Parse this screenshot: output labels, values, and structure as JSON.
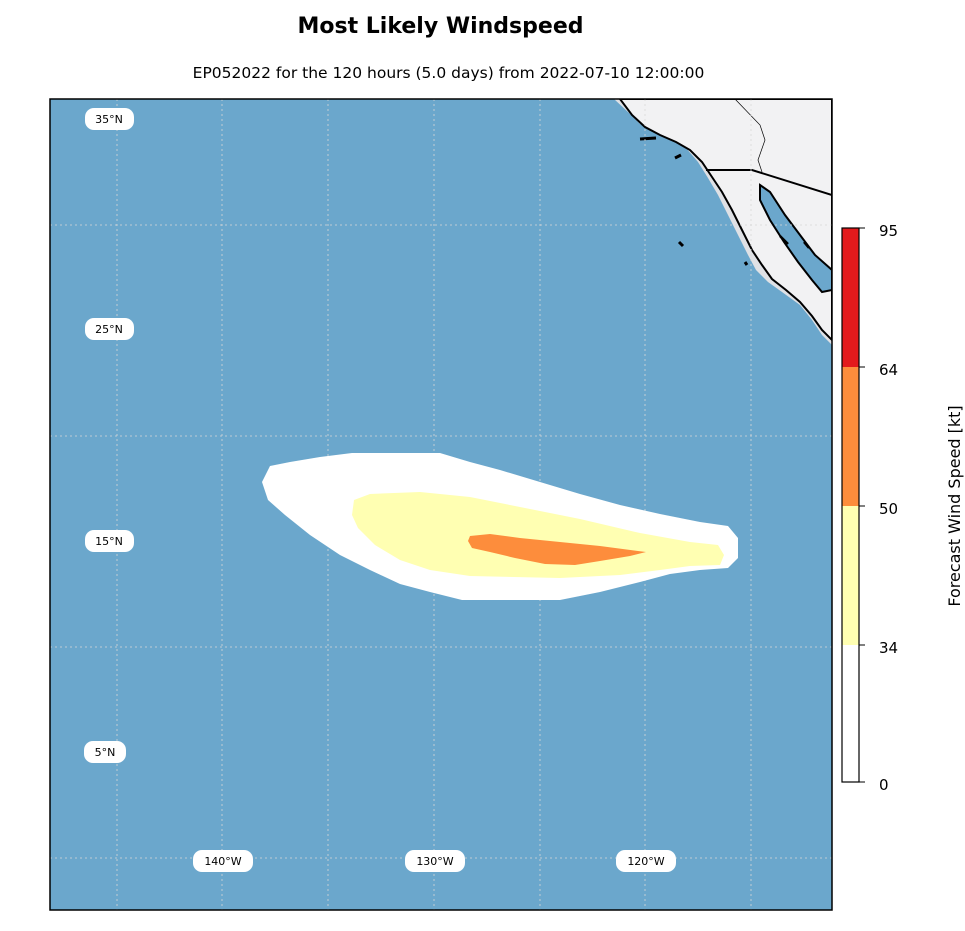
{
  "title": "Most Likely Windspeed",
  "subtitle": "EP052022 for the 120 hours (5.0 days) from 2022-07-10 12:00:00",
  "map": {
    "ocean_color": "#6ba7cc",
    "land_color": "#f2f2f3",
    "lat_labels": [
      {
        "text": "35°N",
        "lat": 35
      },
      {
        "text": "25°N",
        "lat": 25
      },
      {
        "text": "15°N",
        "lat": 15
      },
      {
        "text": "5°N",
        "lat": 5
      }
    ],
    "lon_labels": [
      {
        "text": "140°W",
        "lon": -140
      },
      {
        "text": "130°W",
        "lon": -130
      },
      {
        "text": "120°W",
        "lon": -120
      }
    ],
    "wind_swath": [
      {
        "threshold": "34 kt",
        "color": "#ffffff"
      },
      {
        "threshold": "34-50 kt",
        "color": "#ffffb2"
      },
      {
        "threshold": "50-64 kt",
        "color": "#fd8d3c"
      }
    ]
  },
  "colorbar": {
    "label": "Forecast Wind Speed [kt]",
    "ticks": [
      "0",
      "34",
      "50",
      "64",
      "95"
    ],
    "bins": [
      {
        "from": 0,
        "to": 34,
        "color": "#ffffff"
      },
      {
        "from": 34,
        "to": 50,
        "color": "#ffffb2"
      },
      {
        "from": 50,
        "to": 64,
        "color": "#fd8d3c"
      },
      {
        "from": 64,
        "to": 95,
        "color": "#e31a1c"
      }
    ]
  }
}
